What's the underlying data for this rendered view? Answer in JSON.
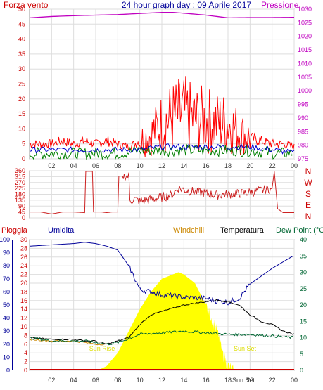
{
  "header": {
    "left_label": "Forza vento",
    "title": "24 hour graph day : 09 Aprile 2017",
    "right_label": "Pressione"
  },
  "colors": {
    "pressure": "#c000c0",
    "wind_text": "#cc0000",
    "gust": "#ff0000",
    "avg": "#0000cc",
    "green": "#008000",
    "dir": "#cc2222",
    "humidity": "#000099",
    "temp": "#000000",
    "dew": "#006633",
    "solar": "#ffff00",
    "windchill": "#cc8800",
    "rain": "#cc0000",
    "sun_text": "#dddd00",
    "grid": "#dddddd",
    "border": "#999999"
  },
  "x_ticks": [
    "02",
    "04",
    "06",
    "08",
    "10",
    "12",
    "14",
    "16",
    "18",
    "20",
    "22",
    "00"
  ],
  "chart_data": [
    {
      "type": "line",
      "ylabel": "Forza vento",
      "ylim": [
        0,
        50
      ],
      "y_ticks": [
        0,
        5,
        10,
        15,
        20,
        25,
        30,
        35,
        40,
        45,
        50
      ],
      "right_ylabel": "Pressione",
      "right_ylim": [
        975,
        1030
      ],
      "right_ticks": [
        975,
        980,
        985,
        990,
        995,
        1000,
        1005,
        1010,
        1015,
        1020,
        1025,
        1030
      ],
      "series": [
        {
          "name": "Pressione",
          "axis": "right",
          "x": [
            0,
            2,
            4,
            6,
            8,
            10,
            12,
            13,
            14,
            16,
            17,
            18,
            20,
            22,
            24
          ],
          "values": [
            1026.8,
            1027.3,
            1027.6,
            1027.8,
            1028.0,
            1028.4,
            1028.8,
            1028.8,
            1028.5,
            1027.8,
            1027.3,
            1026.8,
            1026.9,
            1026.9,
            1027.0
          ]
        },
        {
          "x": [
            0,
            1,
            2,
            3,
            4,
            5,
            6,
            7,
            8,
            9,
            10,
            11,
            12,
            13,
            14,
            15,
            16,
            17,
            18,
            19,
            20,
            21,
            22,
            23,
            24
          ],
          "values": [
            5,
            5,
            5,
            6,
            5,
            6,
            5,
            6,
            5,
            4,
            6,
            8,
            12,
            14,
            15,
            13,
            13,
            12,
            12,
            9,
            7,
            6,
            5,
            5,
            4
          ]
        },
        {
          "x": [
            0,
            2,
            4,
            6,
            8,
            10,
            12,
            14,
            16,
            18,
            20,
            22,
            24
          ],
          "values": [
            3,
            3,
            3,
            3,
            3,
            3,
            4,
            4,
            4,
            4,
            4,
            3,
            2
          ]
        },
        {
          "x": [
            0,
            2,
            4,
            6,
            8,
            10,
            12,
            14,
            16,
            18,
            20,
            22,
            24
          ],
          "values": [
            1,
            1,
            1,
            1,
            1,
            2,
            2,
            2,
            2,
            2,
            2,
            1,
            1
          ]
        }
      ]
    },
    {
      "type": "line",
      "ylim": [
        0,
        360
      ],
      "y_ticks": [
        0,
        45,
        90,
        135,
        180,
        225,
        270,
        315,
        360
      ],
      "compass": [
        "N",
        "W",
        "S",
        "E",
        "N"
      ],
      "series": [
        {
          "x": [
            0,
            1,
            2,
            3,
            4,
            5,
            5.1,
            5.7,
            5.8,
            6.5,
            7,
            7.5,
            8,
            8.1,
            9,
            9.1,
            9.5,
            10,
            11,
            12,
            13,
            13.5,
            14,
            15,
            16,
            17,
            18,
            19,
            20,
            21,
            22,
            22.2,
            22.5,
            23,
            24
          ],
          "values": [
            45,
            45,
            30,
            45,
            45,
            40,
            355,
            355,
            45,
            45,
            40,
            45,
            45,
            320,
            320,
            130,
            145,
            125,
            140,
            155,
            180,
            230,
            215,
            200,
            185,
            175,
            180,
            185,
            195,
            210,
            225,
            355,
            70,
            40,
            40
          ]
        }
      ]
    },
    {
      "type": "line",
      "left_ylabel": "Pioggia",
      "series_labels": [
        "Umidita",
        "Windchill",
        "Temperatura",
        "Dew Point (°C"
      ],
      "ylim": [
        0,
        30
      ],
      "y_ticks": [
        0,
        2,
        4,
        6,
        8,
        10,
        12,
        14,
        16,
        18,
        20,
        22,
        24,
        26,
        28,
        30
      ],
      "hum_ylim": [
        0,
        100
      ],
      "hum_ticks": [
        0,
        10,
        20,
        30,
        40,
        50,
        60,
        70,
        80,
        90,
        100
      ],
      "temp_ylim": [
        0,
        40
      ],
      "temp_ticks": [
        0,
        5,
        10,
        15,
        20,
        25,
        30,
        35,
        40
      ],
      "annotations": {
        "sun_rise": "Sun Rise",
        "sun_set": "Sun Set",
        "sun_set_2": "Sun Set"
      },
      "series": [
        {
          "name": "Umidita",
          "x": [
            0,
            2,
            4,
            5,
            6,
            7,
            8,
            9,
            10,
            11,
            12,
            14,
            16,
            17,
            18,
            19,
            20,
            21,
            22,
            23,
            24
          ],
          "values": [
            95,
            96,
            97,
            98,
            97,
            95,
            92,
            80,
            62,
            60,
            58,
            56,
            55,
            53,
            52,
            55,
            66,
            72,
            78,
            83,
            88
          ]
        },
        {
          "name": "Temperatura",
          "x": [
            0,
            2,
            4,
            5,
            6,
            7,
            8,
            9,
            10,
            11,
            12,
            13,
            14,
            15,
            16,
            17,
            18,
            19,
            20,
            21,
            22,
            23,
            24
          ],
          "values": [
            10,
            9.5,
            9.5,
            9,
            9,
            8,
            9,
            10,
            14,
            17,
            18,
            19,
            20,
            20.5,
            21,
            21.5,
            21,
            20,
            17,
            15,
            14,
            12,
            11
          ]
        },
        {
          "name": "Dew Point",
          "x": [
            0,
            2,
            4,
            5,
            6,
            7,
            8,
            10,
            12,
            14,
            16,
            18,
            20,
            22,
            24
          ],
          "values": [
            10,
            9,
            9,
            9,
            8.5,
            8,
            8.5,
            11,
            11.5,
            12,
            11.5,
            11,
            11,
            10.5,
            10
          ]
        },
        {
          "name": "Windchill",
          "x": [
            0,
            2,
            4,
            5,
            6,
            7
          ],
          "values": [
            9.5,
            9,
            9,
            8.5,
            8,
            8
          ]
        },
        {
          "name": "Solar",
          "x": [
            6.2,
            7,
            8,
            9,
            10,
            11,
            12,
            13,
            13.5,
            14,
            15,
            16,
            17,
            17.5,
            18,
            18.5
          ],
          "values": [
            0,
            1,
            4,
            9,
            14,
            18,
            21,
            22,
            22.5,
            22,
            20,
            15,
            9,
            4,
            1,
            0
          ]
        },
        {
          "name": "Pioggia",
          "x": [
            0,
            24
          ],
          "values": [
            0.2,
            0.2
          ]
        }
      ]
    }
  ]
}
